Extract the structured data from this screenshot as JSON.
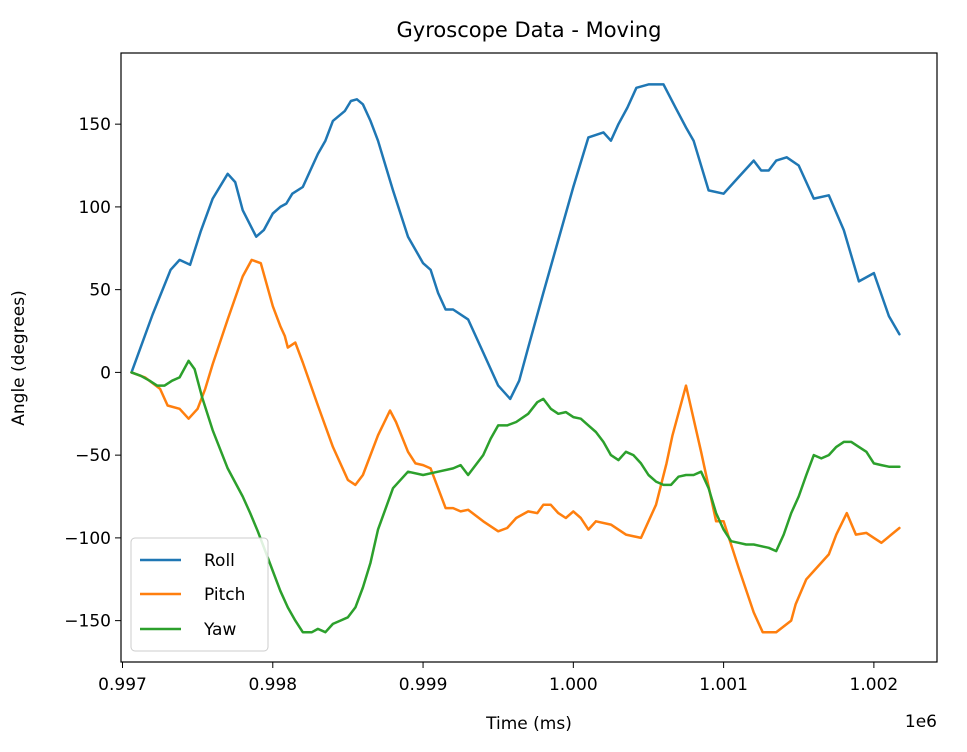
{
  "chart_data": {
    "type": "line",
    "title": "Gyroscope Data - Moving",
    "xlabel": "Time (ms)",
    "ylabel": "Angle (degrees)",
    "x_offset_label": "1e6",
    "xlim": [
      996990,
      1002420
    ],
    "ylim": [
      -175,
      193
    ],
    "x_ticks": [
      997000,
      998000,
      999000,
      1000000,
      1001000,
      1002000
    ],
    "x_tick_labels": [
      "0.997",
      "0.998",
      "0.999",
      "1.000",
      "1.001",
      "1.002"
    ],
    "y_ticks": [
      -150,
      -100,
      -50,
      0,
      50,
      100,
      150
    ],
    "y_tick_labels": [
      "−150",
      "−100",
      "−50",
      "0",
      "50",
      "100",
      "150"
    ],
    "grid": false,
    "legend_position": "lower-left",
    "series": [
      {
        "name": "Roll",
        "color": "#1f77b4",
        "x": [
          997060,
          997200,
          997320,
          997380,
          997450,
          997520,
          997600,
          997700,
          997750,
          997800,
          997890,
          997940,
          998000,
          998050,
          998090,
          998130,
          998200,
          998250,
          998300,
          998350,
          998400,
          998480,
          998520,
          998560,
          998600,
          998650,
          998700,
          998800,
          998900,
          999000,
          999050,
          999100,
          999150,
          999200,
          999300,
          999400,
          999500,
          999580,
          999640,
          999700,
          999800,
          999900,
          1000000,
          1000100,
          1000200,
          1000250,
          1000300,
          1000360,
          1000420,
          1000500,
          1000600,
          1000680,
          1000750,
          1000800,
          1000900,
          1001000,
          1001100,
          1001200,
          1001250,
          1001300,
          1001350,
          1001420,
          1001500,
          1001600,
          1001700,
          1001800,
          1001900,
          1002000,
          1002100,
          1002170
        ],
        "y": [
          0,
          35,
          62,
          68,
          65,
          85,
          105,
          120,
          115,
          98,
          82,
          86,
          96,
          100,
          102,
          108,
          112,
          122,
          132,
          140,
          152,
          158,
          164,
          165,
          162,
          152,
          140,
          110,
          82,
          66,
          62,
          48,
          38,
          38,
          32,
          12,
          -8,
          -16,
          -5,
          15,
          48,
          80,
          112,
          142,
          145,
          140,
          150,
          160,
          172,
          174,
          174,
          160,
          148,
          140,
          110,
          108,
          118,
          128,
          122,
          122,
          128,
          130,
          125,
          105,
          107,
          86,
          55,
          60,
          34,
          23
        ]
      },
      {
        "name": "Pitch",
        "color": "#ff7f0e",
        "x": [
          997060,
          997150,
          997250,
          997300,
          997380,
          997440,
          997500,
          997550,
          997600,
          997700,
          997800,
          997860,
          997920,
          998000,
          998050,
          998080,
          998100,
          998150,
          998200,
          998300,
          998400,
          998500,
          998550,
          998600,
          998700,
          998780,
          998820,
          998900,
          998950,
          999000,
          999050,
          999100,
          999150,
          999200,
          999250,
          999300,
          999400,
          999500,
          999560,
          999620,
          999700,
          999760,
          999800,
          999850,
          999900,
          999950,
          1000000,
          1000050,
          1000100,
          1000150,
          1000250,
          1000350,
          1000450,
          1000550,
          1000620,
          1000660,
          1000750,
          1000850,
          1000950,
          1001000,
          1001100,
          1001200,
          1001260,
          1001350,
          1001450,
          1001480,
          1001550,
          1001600,
          1001700,
          1001750,
          1001820,
          1001880,
          1001950,
          1002000,
          1002050,
          1002170
        ],
        "y": [
          0,
          -3,
          -10,
          -20,
          -22,
          -28,
          -22,
          -10,
          5,
          32,
          58,
          68,
          66,
          40,
          28,
          22,
          15,
          18,
          6,
          -20,
          -45,
          -65,
          -68,
          -62,
          -38,
          -23,
          -30,
          -48,
          -55,
          -56,
          -58,
          -70,
          -82,
          -82,
          -84,
          -83,
          -90,
          -96,
          -94,
          -88,
          -84,
          -85,
          -80,
          -80,
          -85,
          -88,
          -84,
          -88,
          -95,
          -90,
          -92,
          -98,
          -100,
          -80,
          -55,
          -38,
          -8,
          -48,
          -90,
          -90,
          -118,
          -145,
          -157,
          -157,
          -150,
          -140,
          -125,
          -120,
          -110,
          -98,
          -85,
          -98,
          -97,
          -100,
          -103,
          -94
        ]
      },
      {
        "name": "Yaw",
        "color": "#2ca02c",
        "x": [
          997060,
          997120,
          997180,
          997230,
          997280,
          997330,
          997380,
          997440,
          997480,
          997530,
          997600,
          997700,
          997800,
          997850,
          997900,
          997950,
          998000,
          998050,
          998100,
          998150,
          998200,
          998260,
          998300,
          998350,
          998400,
          998450,
          998500,
          998550,
          998600,
          998650,
          998700,
          998800,
          998900,
          999000,
          999100,
          999200,
          999250,
          999300,
          999400,
          999450,
          999500,
          999560,
          999620,
          999700,
          999760,
          999800,
          999850,
          999900,
          999950,
          1000000,
          1000050,
          1000100,
          1000150,
          1000200,
          1000250,
          1000300,
          1000350,
          1000400,
          1000450,
          1000500,
          1000550,
          1000600,
          1000650,
          1000700,
          1000750,
          1000800,
          1000850,
          1000900,
          1000950,
          1001000,
          1001050,
          1001100,
          1001150,
          1001200,
          1001250,
          1001300,
          1001350,
          1001400,
          1001450,
          1001500,
          1001550,
          1001600,
          1001650,
          1001700,
          1001750,
          1001800,
          1001850,
          1001900,
          1001950,
          1002000,
          1002050,
          1002100,
          1002170
        ],
        "y": [
          0,
          -2,
          -5,
          -8,
          -8,
          -5,
          -3,
          7,
          2,
          -15,
          -35,
          -58,
          -75,
          -85,
          -96,
          -108,
          -120,
          -132,
          -142,
          -150,
          -157,
          -157,
          -155,
          -157,
          -152,
          -150,
          -148,
          -142,
          -130,
          -115,
          -95,
          -70,
          -60,
          -62,
          -60,
          -58,
          -56,
          -62,
          -50,
          -40,
          -32,
          -32,
          -30,
          -25,
          -18,
          -16,
          -22,
          -25,
          -24,
          -27,
          -28,
          -32,
          -36,
          -42,
          -50,
          -53,
          -48,
          -50,
          -55,
          -62,
          -66,
          -68,
          -68,
          -63,
          -62,
          -62,
          -60,
          -70,
          -85,
          -95,
          -102,
          -103,
          -104,
          -104,
          -105,
          -106,
          -108,
          -98,
          -85,
          -75,
          -62,
          -50,
          -52,
          -50,
          -45,
          -42,
          -42,
          -45,
          -48,
          -55,
          -56,
          -57,
          -57
        ]
      }
    ]
  }
}
